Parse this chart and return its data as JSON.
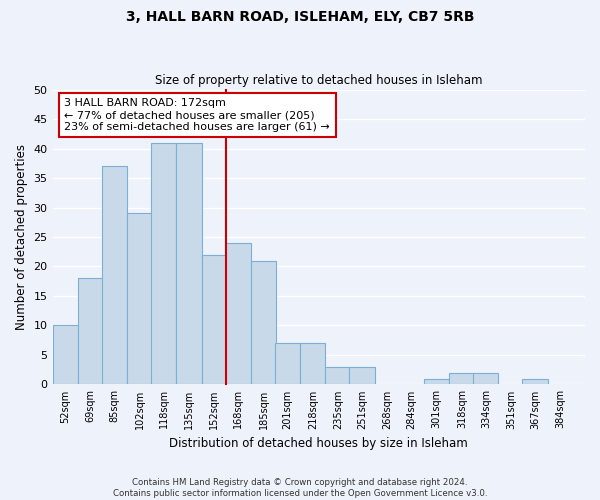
{
  "title": "3, HALL BARN ROAD, ISLEHAM, ELY, CB7 5RB",
  "subtitle": "Size of property relative to detached houses in Isleham",
  "xlabel": "Distribution of detached houses by size in Isleham",
  "ylabel": "Number of detached properties",
  "bin_labels": [
    "52sqm",
    "69sqm",
    "85sqm",
    "102sqm",
    "118sqm",
    "135sqm",
    "152sqm",
    "168sqm",
    "185sqm",
    "201sqm",
    "218sqm",
    "235sqm",
    "251sqm",
    "268sqm",
    "284sqm",
    "301sqm",
    "318sqm",
    "334sqm",
    "351sqm",
    "367sqm",
    "384sqm"
  ],
  "bin_left_edges": [
    52,
    69,
    85,
    102,
    118,
    135,
    152,
    168,
    185,
    201,
    218,
    235,
    251,
    268,
    284,
    301,
    318,
    334,
    351,
    367,
    384
  ],
  "bin_width": 17,
  "counts": [
    10,
    18,
    37,
    29,
    41,
    41,
    22,
    24,
    21,
    7,
    7,
    3,
    3,
    0,
    0,
    1,
    2,
    2,
    0,
    1,
    0
  ],
  "bar_color": "#c8daea",
  "bar_edge_color": "#7bafd4",
  "property_line_x": 168,
  "property_line_color": "#cc0000",
  "annotation_text_line1": "3 HALL BARN ROAD: 172sqm",
  "annotation_text_line2": "← 77% of detached houses are smaller (205)",
  "annotation_text_line3": "23% of semi-detached houses are larger (61) →",
  "annotation_box_color": "#ffffff",
  "annotation_box_edge_color": "#cc0000",
  "ylim": [
    0,
    50
  ],
  "yticks": [
    0,
    5,
    10,
    15,
    20,
    25,
    30,
    35,
    40,
    45,
    50
  ],
  "footer_line1": "Contains HM Land Registry data © Crown copyright and database right 2024.",
  "footer_line2": "Contains public sector information licensed under the Open Government Licence v3.0.",
  "bg_color": "#eef2fa",
  "grid_color": "#ffffff",
  "plot_bg_color": "#eef2fa"
}
